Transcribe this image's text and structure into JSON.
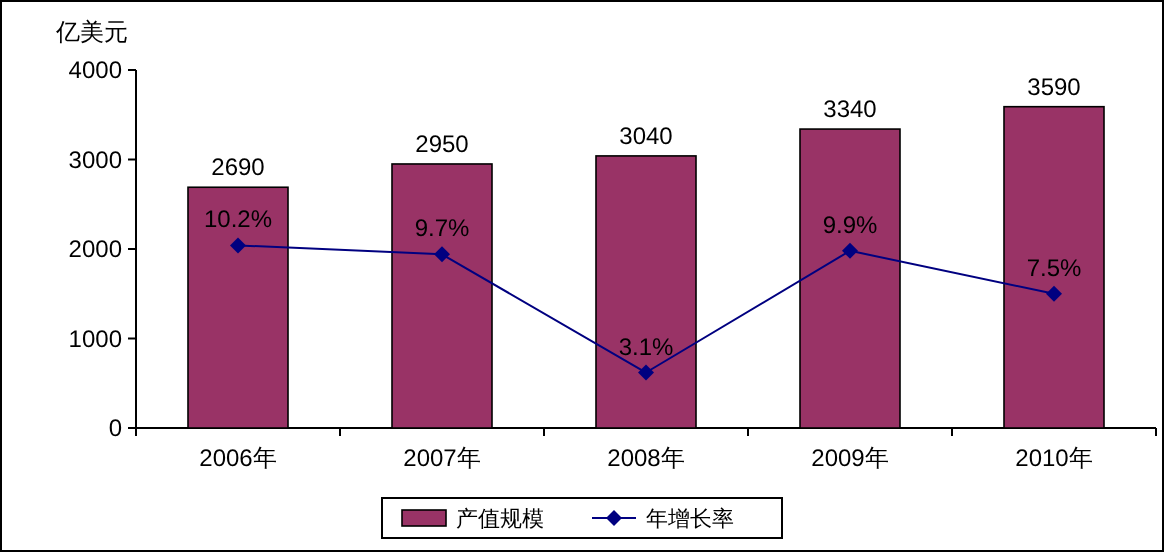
{
  "chart_data": {
    "type": "bar",
    "ylabel": "亿美元",
    "categories": [
      "2006年",
      "2007年",
      "2008年",
      "2009年",
      "2010年"
    ],
    "series": [
      {
        "name": "产值规模",
        "color": "#993366",
        "values": [
          2690,
          2950,
          3040,
          3340,
          3590
        ],
        "value_labels": [
          "2690",
          "2950",
          "3040",
          "3340",
          "3590"
        ]
      },
      {
        "name": "年增长率",
        "type": "line",
        "axis": "y2",
        "color": "#000080",
        "marker": "diamond",
        "values": [
          10.2,
          9.7,
          3.1,
          9.9,
          7.5
        ],
        "value_labels": [
          "10.2%",
          "9.7%",
          "3.1%",
          "9.9%",
          "7.5%"
        ]
      }
    ],
    "ylim": [
      0,
      4000
    ],
    "yticks": [
      0,
      1000,
      2000,
      3000,
      4000
    ],
    "y2lim": [
      0,
      20
    ],
    "tick_labels": "xy",
    "grid": false,
    "legend": "bottom"
  }
}
